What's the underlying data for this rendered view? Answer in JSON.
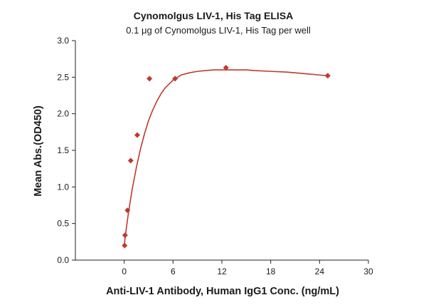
{
  "chart_data": {
    "type": "scatter",
    "title": "Cynomolgus LIV-1, His Tag ELISA",
    "subtitle": "0.1 μg of Cynomolgus LIV-1, His Tag per well",
    "xlabel": "Anti-LIV-1 Antibody, Human IgG1 Conc. (ng/mL)",
    "ylabel": "Mean Abs.(OD450)",
    "xlim": [
      -6,
      30
    ],
    "ylim": [
      0,
      3.0
    ],
    "xticks": [
      0,
      6,
      12,
      18,
      24,
      30
    ],
    "yticks": [
      0.0,
      0.5,
      1.0,
      1.5,
      2.0,
      2.5,
      3.0
    ],
    "ytick_labels": [
      "0.0",
      "0.5",
      "1.0",
      "1.5",
      "2.0",
      "2.5",
      "3.0"
    ],
    "grid": false,
    "colors": {
      "marker": "#c0392b",
      "curve": "#c0392b"
    },
    "series": [
      {
        "x": [
          0.05,
          0.1,
          0.4,
          0.8,
          1.6,
          3.1,
          6.25,
          12.5,
          25
        ],
        "y": [
          0.2,
          0.34,
          0.68,
          1.36,
          1.71,
          2.48,
          2.48,
          2.63,
          2.52
        ]
      }
    ],
    "fit_curve": {
      "x": [
        0,
        0.25,
        0.5,
        0.75,
        1,
        1.5,
        2,
        2.5,
        3,
        3.5,
        4,
        4.5,
        5,
        6,
        7,
        8,
        9,
        10,
        11,
        12,
        13,
        14,
        15,
        16,
        18,
        20,
        22,
        24,
        25
      ],
      "y": [
        0.2,
        0.43,
        0.63,
        0.81,
        0.98,
        1.27,
        1.52,
        1.73,
        1.91,
        2.05,
        2.17,
        2.27,
        2.35,
        2.46,
        2.53,
        2.56,
        2.58,
        2.59,
        2.6,
        2.6,
        2.6,
        2.6,
        2.6,
        2.59,
        2.58,
        2.57,
        2.55,
        2.53,
        2.52
      ]
    }
  }
}
